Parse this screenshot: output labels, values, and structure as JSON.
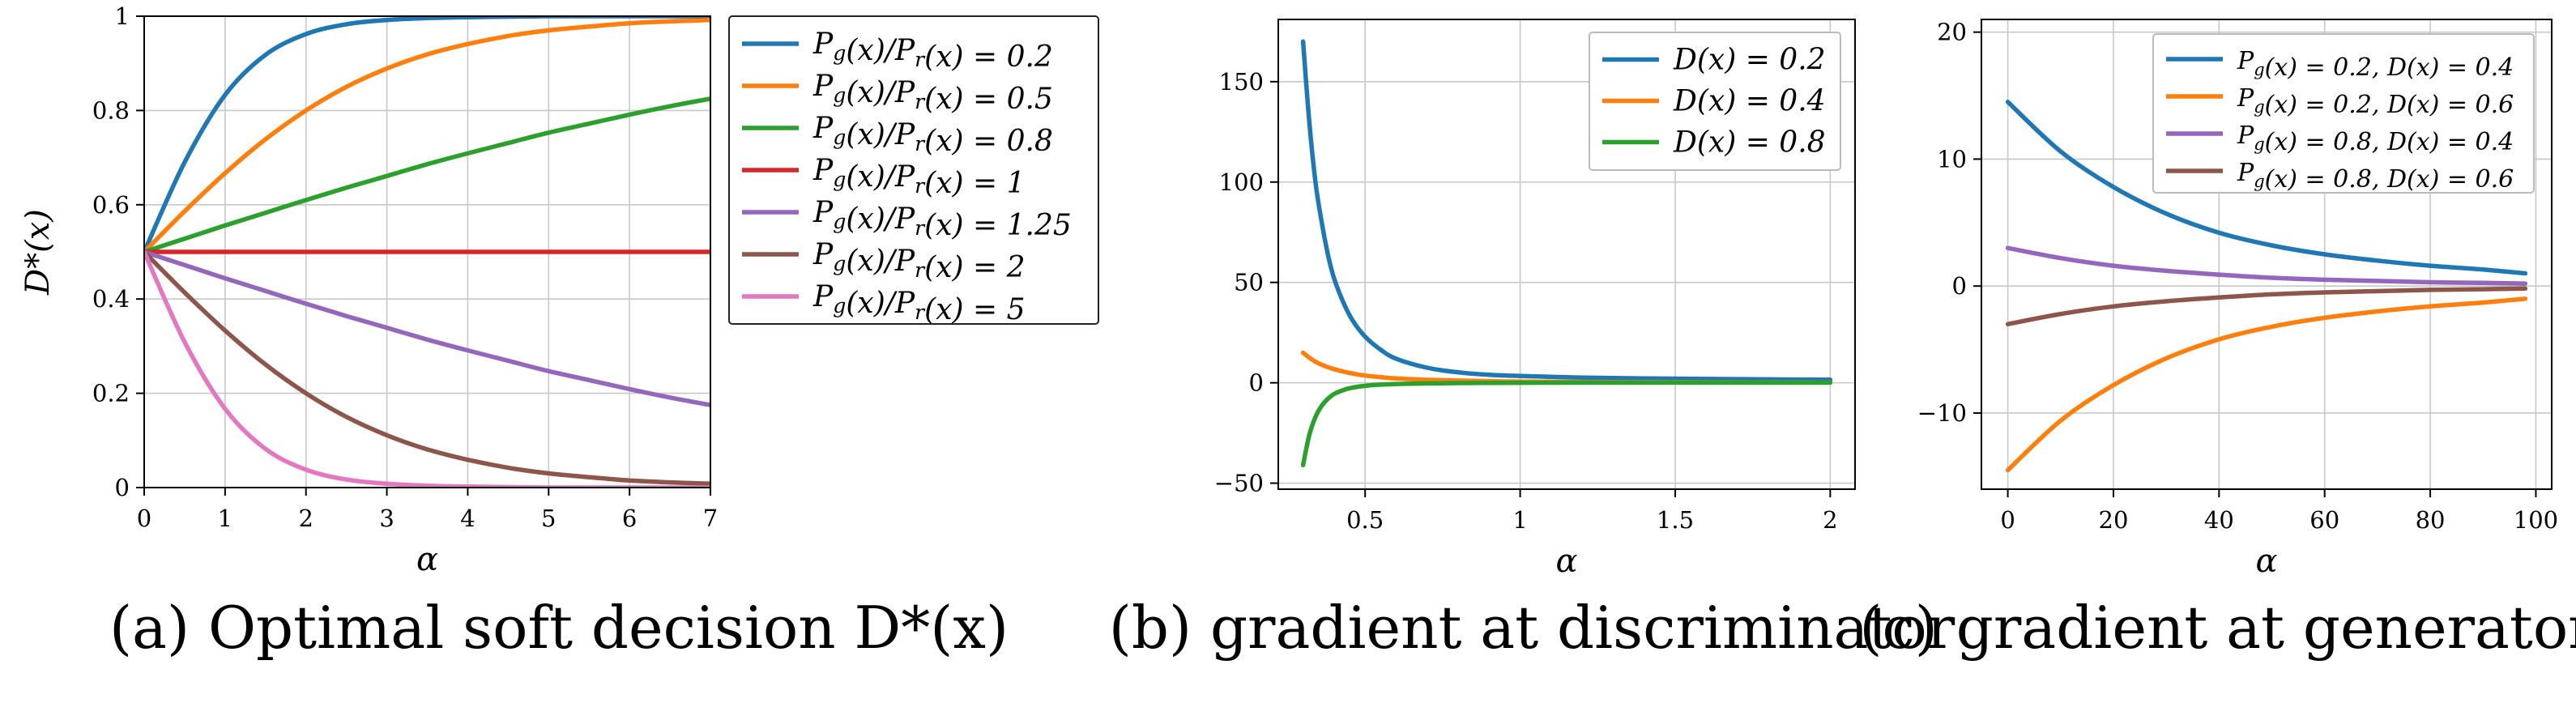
{
  "chart_data": [
    {
      "id": "a",
      "type": "line",
      "caption": "(a) Optimal soft decision D*(x)",
      "xlabel": "α",
      "ylabel": "D*(x)",
      "xlim": [
        0,
        7
      ],
      "ylim": [
        0,
        1
      ],
      "xticks": [
        0,
        1,
        2,
        3,
        4,
        5,
        6,
        7
      ],
      "yticks": [
        0,
        0.2,
        0.4,
        0.6,
        0.8,
        1
      ],
      "ytick_labels": [
        "0",
        "0.2",
        "0.4",
        "0.6",
        "0.8",
        "1"
      ],
      "grid": true,
      "legend": "outside-right",
      "x": [
        0,
        0.5,
        1,
        1.5,
        2,
        2.5,
        3,
        3.5,
        4,
        4.5,
        5,
        5.5,
        6,
        6.5,
        7
      ],
      "series": [
        {
          "name": "Pg(x)/Pr(x) = 0.2",
          "color": "#1f77b4",
          "values": [
            0.5,
            0.69,
            0.833,
            0.918,
            0.962,
            0.983,
            0.992,
            0.996,
            0.998,
            0.999,
            1.0,
            1.0,
            1.0,
            1.0,
            1.0
          ]
        },
        {
          "name": "Pg(x)/Pr(x) = 0.5",
          "color": "#ff7f0e",
          "values": [
            0.5,
            0.586,
            0.667,
            0.739,
            0.8,
            0.85,
            0.889,
            0.919,
            0.941,
            0.958,
            0.97,
            0.978,
            0.985,
            0.989,
            0.992
          ]
        },
        {
          "name": "Pg(x)/Pr(x) = 0.8",
          "color": "#2ca02c",
          "values": [
            0.5,
            0.528,
            0.556,
            0.583,
            0.61,
            0.636,
            0.661,
            0.686,
            0.709,
            0.731,
            0.753,
            0.772,
            0.791,
            0.809,
            0.825
          ]
        },
        {
          "name": "Pg(x)/Pr(x) = 1",
          "color": "#d62728",
          "values": [
            0.5,
            0.5,
            0.5,
            0.5,
            0.5,
            0.5,
            0.5,
            0.5,
            0.5,
            0.5,
            0.5,
            0.5,
            0.5,
            0.5,
            0.5
          ]
        },
        {
          "name": "Pg(x)/Pr(x) = 1.25",
          "color": "#9467bd",
          "values": [
            0.5,
            0.472,
            0.444,
            0.417,
            0.39,
            0.364,
            0.339,
            0.314,
            0.291,
            0.269,
            0.247,
            0.228,
            0.209,
            0.191,
            0.175
          ]
        },
        {
          "name": "Pg(x)/Pr(x) = 2",
          "color": "#8c564b",
          "values": [
            0.5,
            0.414,
            0.333,
            0.261,
            0.2,
            0.15,
            0.111,
            0.081,
            0.059,
            0.042,
            0.03,
            0.022,
            0.015,
            0.011,
            0.008
          ]
        },
        {
          "name": "Pg(x)/Pr(x) = 5",
          "color": "#e377c2",
          "values": [
            0.5,
            0.309,
            0.167,
            0.082,
            0.038,
            0.017,
            0.008,
            0.004,
            0.002,
            0.001,
            0.0,
            0.0,
            0.0,
            0.0,
            0.0
          ]
        }
      ]
    },
    {
      "id": "b",
      "type": "line",
      "caption": "(b) gradient at discriminator",
      "xlabel": "α",
      "ylabel": "",
      "xlim": [
        0.22,
        2.08
      ],
      "ylim": [
        -53,
        181
      ],
      "xticks": [
        0.5,
        1,
        1.5,
        2
      ],
      "xtick_labels": [
        "0.5",
        "1",
        "1.5",
        "2"
      ],
      "yticks": [
        -50,
        0,
        50,
        100,
        150
      ],
      "ytick_labels": [
        "−50",
        "0",
        "50",
        "100",
        "150"
      ],
      "grid": true,
      "legend": "top-right",
      "x": [
        0.3,
        0.32,
        0.34,
        0.36,
        0.38,
        0.4,
        0.43,
        0.46,
        0.5,
        0.55,
        0.6,
        0.7,
        0.8,
        0.9,
        1.0,
        1.2,
        1.4,
        1.6,
        1.8,
        2.0
      ],
      "series": [
        {
          "name": "D(x) = 0.2",
          "color": "#1f77b4",
          "values": [
            170,
            130,
            100,
            80,
            64,
            52,
            40,
            31,
            23,
            16.5,
            12,
            7.5,
            5.2,
            4.0,
            3.4,
            2.6,
            2.2,
            1.9,
            1.7,
            1.5
          ]
        },
        {
          "name": "D(x) = 0.4",
          "color": "#ff7f0e",
          "values": [
            15,
            12.5,
            10.5,
            9,
            7.8,
            6.8,
            5.6,
            4.6,
            3.6,
            2.8,
            2.2,
            1.5,
            1.1,
            0.8,
            0.6,
            0.4,
            0.3,
            0.25,
            0.2,
            0.15
          ]
        },
        {
          "name": "D(x) = 0.8",
          "color": "#2ca02c",
          "values": [
            -41,
            -26,
            -17,
            -11.5,
            -8,
            -5.6,
            -3.6,
            -2.4,
            -1.5,
            -0.9,
            -0.6,
            -0.3,
            -0.15,
            -0.05,
            0,
            0.1,
            0.1,
            0.1,
            0.1,
            0.1
          ]
        }
      ]
    },
    {
      "id": "c",
      "type": "line",
      "caption": "(c) gradient at generator",
      "xlabel": "α",
      "ylabel": "",
      "xlim": [
        -5,
        103
      ],
      "ylim": [
        -16,
        21
      ],
      "xticks": [
        0,
        20,
        40,
        60,
        80,
        100
      ],
      "xtick_labels": [
        "0",
        "20",
        "40",
        "60",
        "80",
        "100"
      ],
      "yticks": [
        -10,
        0,
        10,
        20
      ],
      "ytick_labels": [
        "−10",
        "0",
        "10",
        "20"
      ],
      "grid": true,
      "legend": "top-right",
      "x": [
        0,
        10,
        20,
        30,
        40,
        50,
        60,
        70,
        80,
        90,
        98
      ],
      "series": [
        {
          "name": "Pg(x) = 0.2, D(x) = 0.4",
          "color": "#1f77b4",
          "values": [
            14.5,
            10.6,
            7.8,
            5.7,
            4.2,
            3.2,
            2.5,
            2.0,
            1.6,
            1.3,
            1.0
          ]
        },
        {
          "name": "Pg(x) = 0.2, D(x) = 0.6",
          "color": "#ff7f0e",
          "values": [
            -14.5,
            -10.6,
            -7.8,
            -5.7,
            -4.2,
            -3.2,
            -2.5,
            -2.0,
            -1.6,
            -1.3,
            -1.0
          ]
        },
        {
          "name": "Pg(x) = 0.8, D(x) = 0.4",
          "color": "#9467bd",
          "values": [
            3.0,
            2.2,
            1.6,
            1.2,
            0.9,
            0.65,
            0.5,
            0.4,
            0.3,
            0.25,
            0.2
          ]
        },
        {
          "name": "Pg(x) = 0.8, D(x) = 0.6",
          "color": "#8c564b",
          "values": [
            -3.0,
            -2.2,
            -1.6,
            -1.2,
            -0.9,
            -0.65,
            -0.5,
            -0.4,
            -0.3,
            -0.25,
            -0.2
          ]
        }
      ]
    }
  ]
}
